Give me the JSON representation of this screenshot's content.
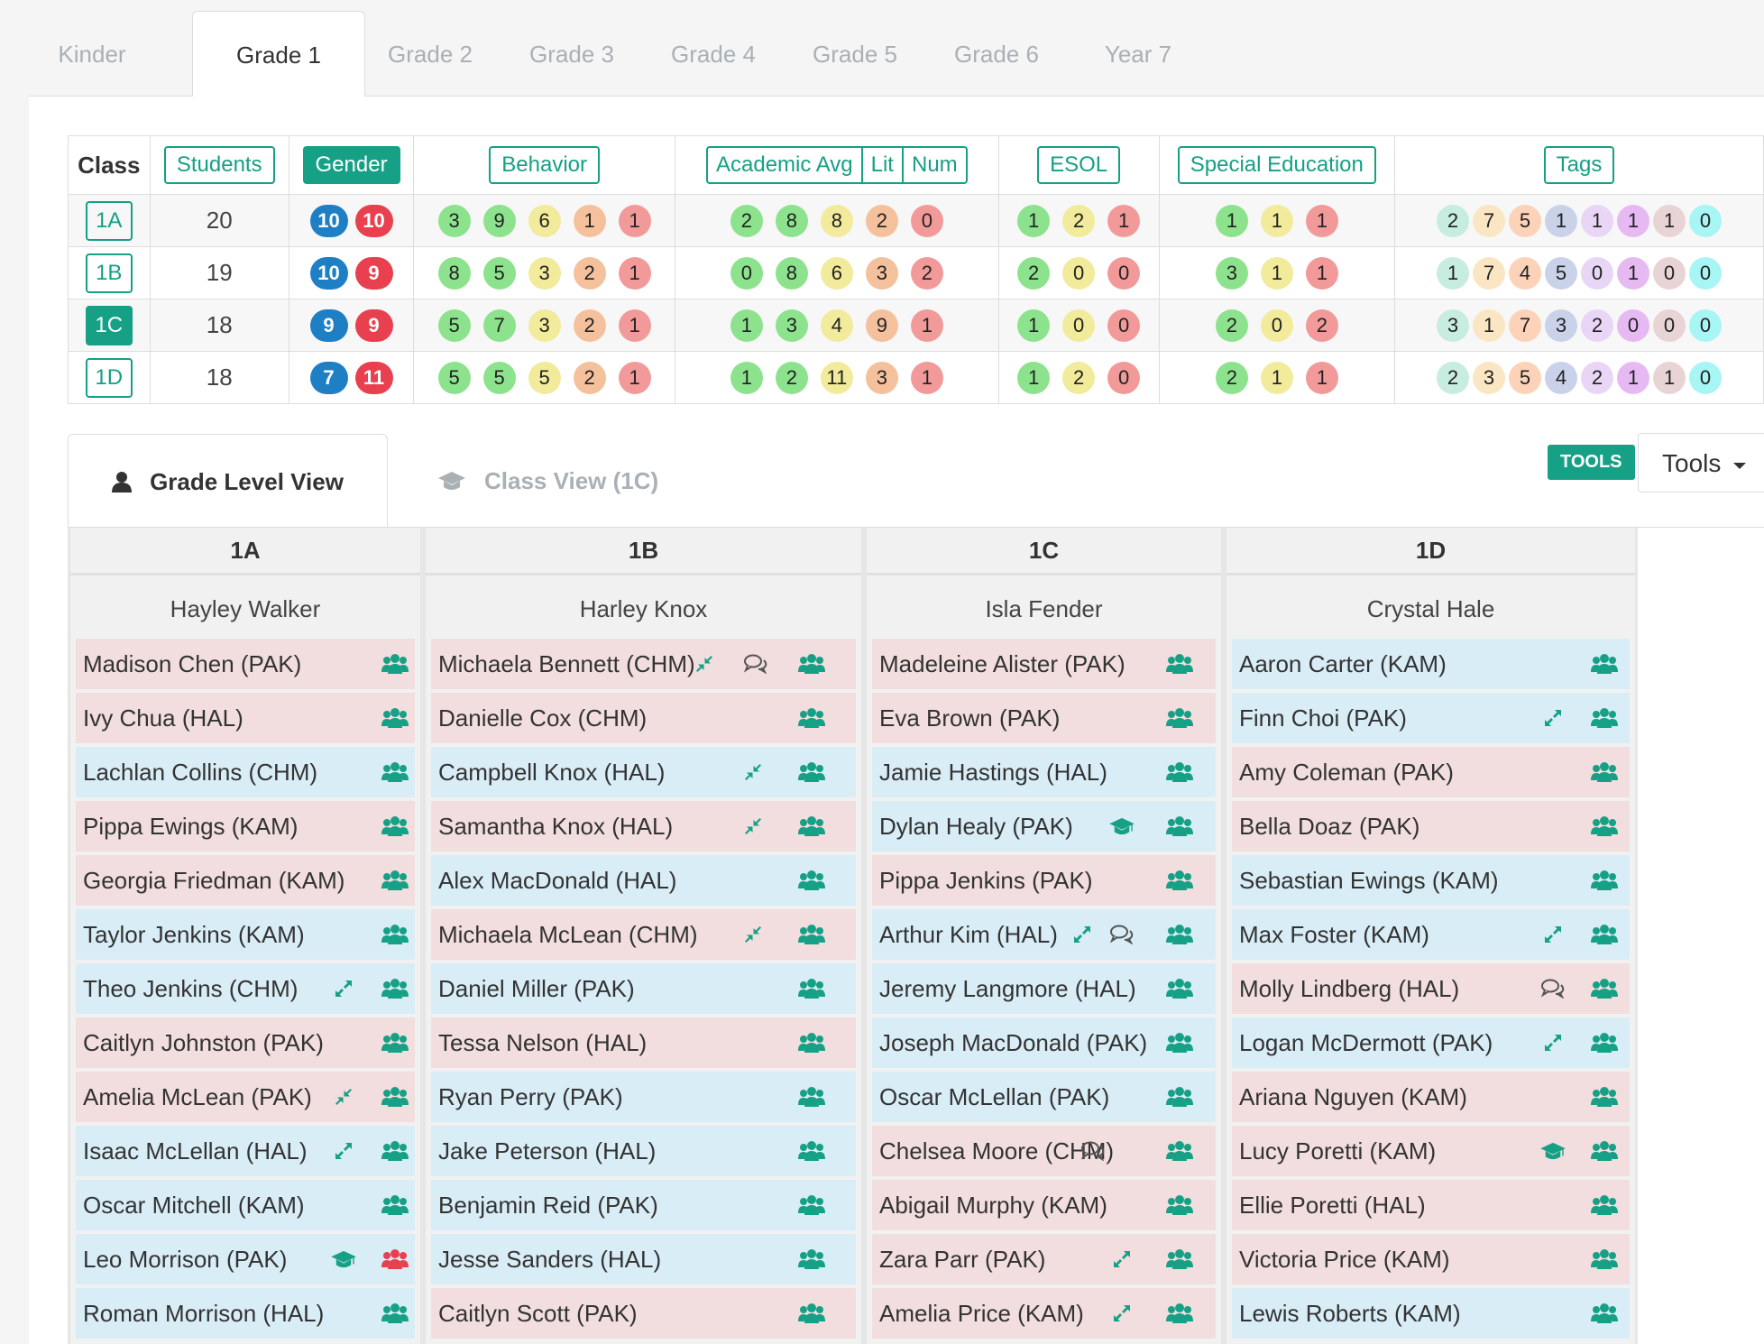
{
  "grade_tabs": [
    "Kinder",
    "Grade 1",
    "Grade 2",
    "Grade 3",
    "Grade 4",
    "Grade 5",
    "Grade 6",
    "Year 7"
  ],
  "active_grade_tab": "Grade 1",
  "summary": {
    "headers": {
      "class": "Class",
      "students": "Students",
      "gender": "Gender",
      "behavior": "Behavior",
      "academic_avg": "Academic Avg",
      "lit": "Lit",
      "num": "Num",
      "esol": "ESOL",
      "special_education": "Special Education",
      "tags": "Tags"
    },
    "colors": {
      "teal": "#16a085",
      "male": "#1f7fc5",
      "female": "#e8404f",
      "green": "#8de38d",
      "yellow": "#f1eb9b",
      "orange": "#f4c19c",
      "red": "#f29a9a",
      "tag_colors": [
        "#c7ece0",
        "#fbe6c4",
        "#fcd3b8",
        "#c9d2e9",
        "#e9d6f6",
        "#e7b9f3",
        "#e8d4d4",
        "#a8f5f5"
      ]
    },
    "rows": [
      {
        "class": "1A",
        "students": "20",
        "gender": [
          "10",
          "10"
        ],
        "behavior": [
          "3",
          "9",
          "6",
          "1",
          "1"
        ],
        "academic": [
          "2",
          "8",
          "8",
          "2",
          "0"
        ],
        "esol": [
          "1",
          "2",
          "1"
        ],
        "sped": [
          "1",
          "1",
          "1"
        ],
        "tags": [
          "2",
          "7",
          "5",
          "1",
          "1",
          "1",
          "1",
          "0"
        ]
      },
      {
        "class": "1B",
        "students": "19",
        "gender": [
          "10",
          "9"
        ],
        "behavior": [
          "8",
          "5",
          "3",
          "2",
          "1"
        ],
        "academic": [
          "0",
          "8",
          "6",
          "3",
          "2"
        ],
        "esol": [
          "2",
          "0",
          "0"
        ],
        "sped": [
          "3",
          "1",
          "1"
        ],
        "tags": [
          "1",
          "7",
          "4",
          "5",
          "0",
          "1",
          "0",
          "0"
        ]
      },
      {
        "class": "1C",
        "students": "18",
        "gender": [
          "9",
          "9"
        ],
        "behavior": [
          "5",
          "7",
          "3",
          "2",
          "1"
        ],
        "academic": [
          "1",
          "3",
          "4",
          "9",
          "1"
        ],
        "esol": [
          "1",
          "0",
          "0"
        ],
        "sped": [
          "2",
          "0",
          "2"
        ],
        "tags": [
          "3",
          "1",
          "7",
          "3",
          "2",
          "0",
          "0",
          "0"
        ]
      },
      {
        "class": "1D",
        "students": "18",
        "gender": [
          "7",
          "11"
        ],
        "behavior": [
          "5",
          "5",
          "5",
          "2",
          "1"
        ],
        "academic": [
          "1",
          "2",
          "11",
          "3",
          "1"
        ],
        "esol": [
          "1",
          "2",
          "0"
        ],
        "sped": [
          "2",
          "1",
          "1"
        ],
        "tags": [
          "2",
          "3",
          "5",
          "4",
          "2",
          "1",
          "1",
          "0"
        ]
      }
    ],
    "selected_class": "1C"
  },
  "view_tabs": {
    "grade_level": "Grade Level View",
    "class_view": "Class View (1C)"
  },
  "tools": {
    "badge": "TOOLS",
    "button": "Tools"
  },
  "classes": [
    {
      "name": "1A",
      "teacher": "Hayley Walker",
      "students": [
        {
          "label": "Madison Chen (PAK)",
          "g": "f"
        },
        {
          "label": "Ivy Chua (HAL)",
          "g": "f"
        },
        {
          "label": "Lachlan Collins (CHM)",
          "g": "m"
        },
        {
          "label": "Pippa Ewings (KAM)",
          "g": "f"
        },
        {
          "label": "Georgia Friedman (KAM)",
          "g": "f"
        },
        {
          "label": "Taylor Jenkins (KAM)",
          "g": "m"
        },
        {
          "label": "Theo Jenkins (CHM)",
          "g": "m",
          "icons": [
            "expand"
          ]
        },
        {
          "label": "Caitlyn Johnston (PAK)",
          "g": "f"
        },
        {
          "label": "Amelia McLean (PAK)",
          "g": "f",
          "icons": [
            "compress"
          ]
        },
        {
          "label": "Isaac McLellan (HAL)",
          "g": "m",
          "icons": [
            "expand"
          ]
        },
        {
          "label": "Oscar Mitchell (KAM)",
          "g": "m"
        },
        {
          "label": "Leo Morrison (PAK)",
          "g": "m",
          "icons": [
            "cap"
          ],
          "group_red": true
        },
        {
          "label": "Roman Morrison (HAL)",
          "g": "m"
        }
      ]
    },
    {
      "name": "1B",
      "teacher": "Harley Knox",
      "students": [
        {
          "label": "Michaela Bennett (CHM)",
          "g": "f",
          "icons": [
            "compress-inline",
            "comment"
          ]
        },
        {
          "label": "Danielle Cox (CHM)",
          "g": "f"
        },
        {
          "label": "Campbell Knox (HAL)",
          "g": "m",
          "icons": [
            "compress"
          ]
        },
        {
          "label": "Samantha Knox (HAL)",
          "g": "f",
          "icons": [
            "compress"
          ]
        },
        {
          "label": "Alex MacDonald (HAL)",
          "g": "m"
        },
        {
          "label": "Michaela McLean (CHM)",
          "g": "f",
          "icons": [
            "compress"
          ]
        },
        {
          "label": "Daniel Miller (PAK)",
          "g": "m"
        },
        {
          "label": "Tessa Nelson (HAL)",
          "g": "f"
        },
        {
          "label": "Ryan Perry (PAK)",
          "g": "m"
        },
        {
          "label": "Jake Peterson (HAL)",
          "g": "m"
        },
        {
          "label": "Benjamin Reid (PAK)",
          "g": "m"
        },
        {
          "label": "Jesse Sanders (HAL)",
          "g": "m"
        },
        {
          "label": "Caitlyn Scott (PAK)",
          "g": "f"
        }
      ]
    },
    {
      "name": "1C",
      "teacher": "Isla Fender",
      "students": [
        {
          "label": "Madeleine Alister (PAK)",
          "g": "f"
        },
        {
          "label": "Eva Brown (PAK)",
          "g": "f"
        },
        {
          "label": "Jamie Hastings (HAL)",
          "g": "m"
        },
        {
          "label": "Dylan Healy (PAK)",
          "g": "m",
          "icons": [
            "cap"
          ]
        },
        {
          "label": "Pippa Jenkins (PAK)",
          "g": "f"
        },
        {
          "label": "Arthur Kim (HAL)",
          "g": "m",
          "icons": [
            "expand-inline",
            "comment"
          ]
        },
        {
          "label": "Jeremy Langmore (HAL)",
          "g": "m"
        },
        {
          "label": "Joseph MacDonald (PAK)",
          "g": "m"
        },
        {
          "label": "Oscar McLellan (PAK)",
          "g": "m"
        },
        {
          "label": "Chelsea Moore (CHM)",
          "g": "f",
          "icons": [
            "comment"
          ]
        },
        {
          "label": "Abigail Murphy (KAM)",
          "g": "f"
        },
        {
          "label": "Zara Parr (PAK)",
          "g": "f",
          "icons": [
            "expand"
          ]
        },
        {
          "label": "Amelia Price (KAM)",
          "g": "f",
          "icons": [
            "expand"
          ]
        }
      ]
    },
    {
      "name": "1D",
      "teacher": "Crystal Hale",
      "students": [
        {
          "label": "Aaron Carter (KAM)",
          "g": "m"
        },
        {
          "label": "Finn Choi (PAK)",
          "g": "m",
          "icons": [
            "expand"
          ]
        },
        {
          "label": "Amy Coleman (PAK)",
          "g": "f"
        },
        {
          "label": "Bella Doaz (PAK)",
          "g": "f"
        },
        {
          "label": "Sebastian Ewings (KAM)",
          "g": "m"
        },
        {
          "label": "Max Foster (KAM)",
          "g": "m",
          "icons": [
            "expand"
          ]
        },
        {
          "label": "Molly Lindberg (HAL)",
          "g": "f",
          "icons": [
            "comment"
          ]
        },
        {
          "label": "Logan McDermott (PAK)",
          "g": "m",
          "icons": [
            "expand"
          ]
        },
        {
          "label": "Ariana Nguyen (KAM)",
          "g": "f"
        },
        {
          "label": "Lucy Poretti (KAM)",
          "g": "f",
          "icons": [
            "cap"
          ]
        },
        {
          "label": "Ellie Poretti (HAL)",
          "g": "f"
        },
        {
          "label": "Victoria Price (KAM)",
          "g": "f"
        },
        {
          "label": "Lewis Roberts (KAM)",
          "g": "m"
        }
      ]
    }
  ]
}
